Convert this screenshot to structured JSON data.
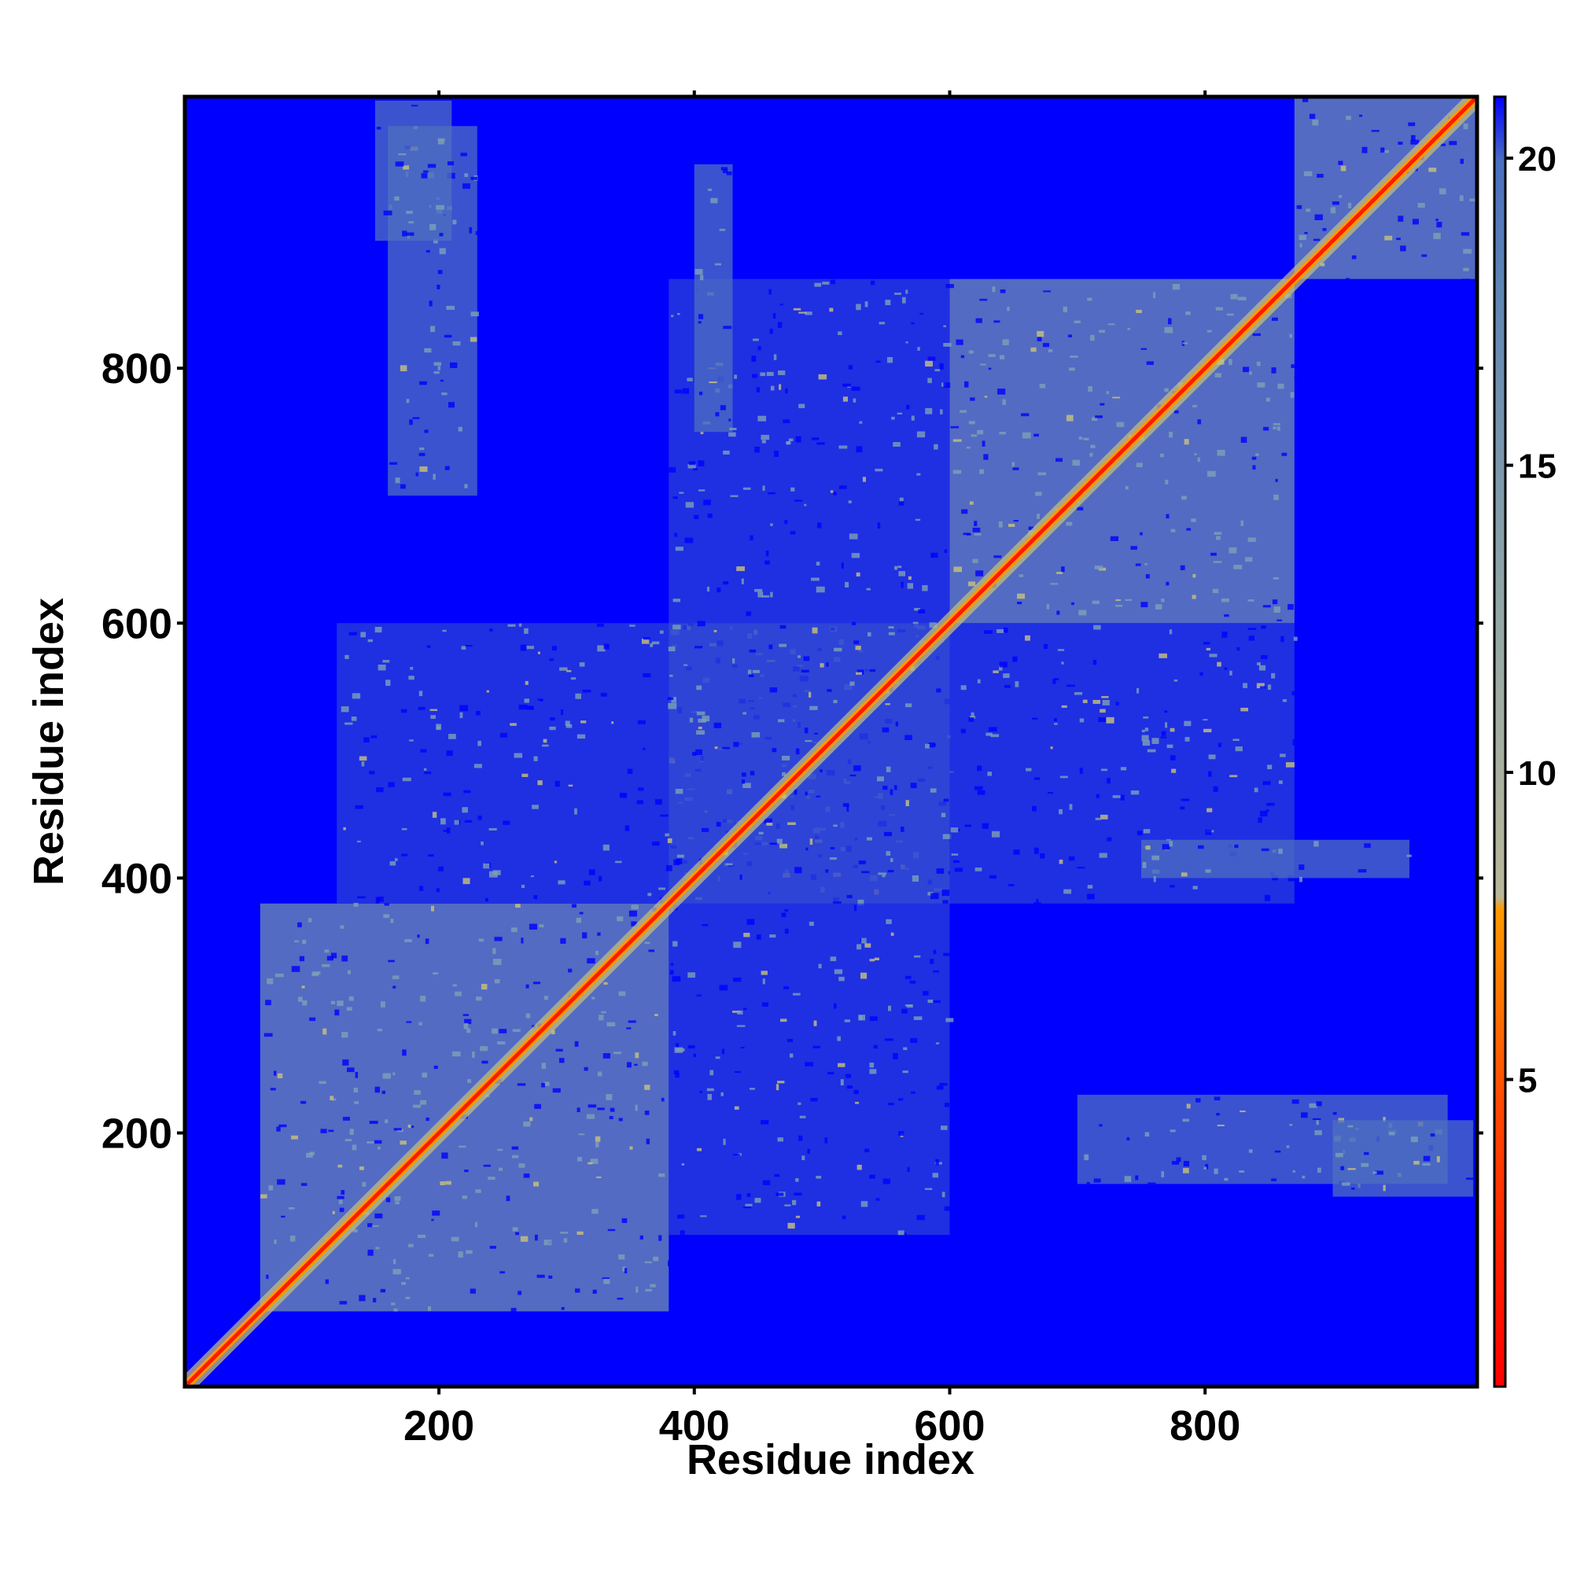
{
  "chart_data": {
    "type": "heatmap",
    "description_kind": "residue contact / distance map",
    "xlabel": "Residue index",
    "ylabel": "Residue index",
    "xlim": [
      1,
      1013
    ],
    "ylim": [
      1,
      1013
    ],
    "x_ticks": [
      200,
      400,
      600,
      800
    ],
    "y_ticks": [
      200,
      400,
      600,
      800
    ],
    "x_tick_labels": [
      "200",
      "400",
      "600",
      "800"
    ],
    "y_tick_labels": [
      "200",
      "400",
      "600",
      "800"
    ],
    "colorbar": {
      "range": [
        0,
        21
      ],
      "ticks": [
        5,
        10,
        15,
        20
      ],
      "tick_labels": [
        "5",
        "10",
        "15",
        "20"
      ],
      "colors": {
        "low": "#ff0000",
        "mid_low": "#ff8c00",
        "mid": "#b8b89a",
        "high": "#5f86b4",
        "max": "#0000ff"
      }
    },
    "background_color": "#0000ff",
    "diagonal_color": "#ff1a00",
    "regions": [
      {
        "x": [
          60,
          380
        ],
        "y": [
          60,
          380
        ],
        "level": 15
      },
      {
        "x": [
          380,
          600
        ],
        "y": [
          380,
          600
        ],
        "level": 16
      },
      {
        "x": [
          600,
          870
        ],
        "y": [
          600,
          870
        ],
        "level": 15
      },
      {
        "x": [
          870,
          1013
        ],
        "y": [
          870,
          1013
        ],
        "level": 15
      },
      {
        "x": [
          120,
          600
        ],
        "y": [
          380,
          600
        ],
        "level": 18
      },
      {
        "x": [
          380,
          600
        ],
        "y": [
          120,
          380
        ],
        "level": 18
      },
      {
        "x": [
          600,
          870
        ],
        "y": [
          380,
          600
        ],
        "level": 18
      },
      {
        "x": [
          380,
          600
        ],
        "y": [
          600,
          870
        ],
        "level": 18
      },
      {
        "x": [
          400,
          430
        ],
        "y": [
          750,
          960
        ],
        "level": 16
      },
      {
        "x": [
          750,
          960
        ],
        "y": [
          400,
          430
        ],
        "level": 16
      },
      {
        "x": [
          160,
          230
        ],
        "y": [
          700,
          990
        ],
        "level": 17
      },
      {
        "x": [
          700,
          990
        ],
        "y": [
          160,
          230
        ],
        "level": 17
      },
      {
        "x": [
          900,
          1010
        ],
        "y": [
          150,
          210
        ],
        "level": 16
      },
      {
        "x": [
          150,
          210
        ],
        "y": [
          900,
          1010
        ],
        "level": 16
      }
    ]
  }
}
